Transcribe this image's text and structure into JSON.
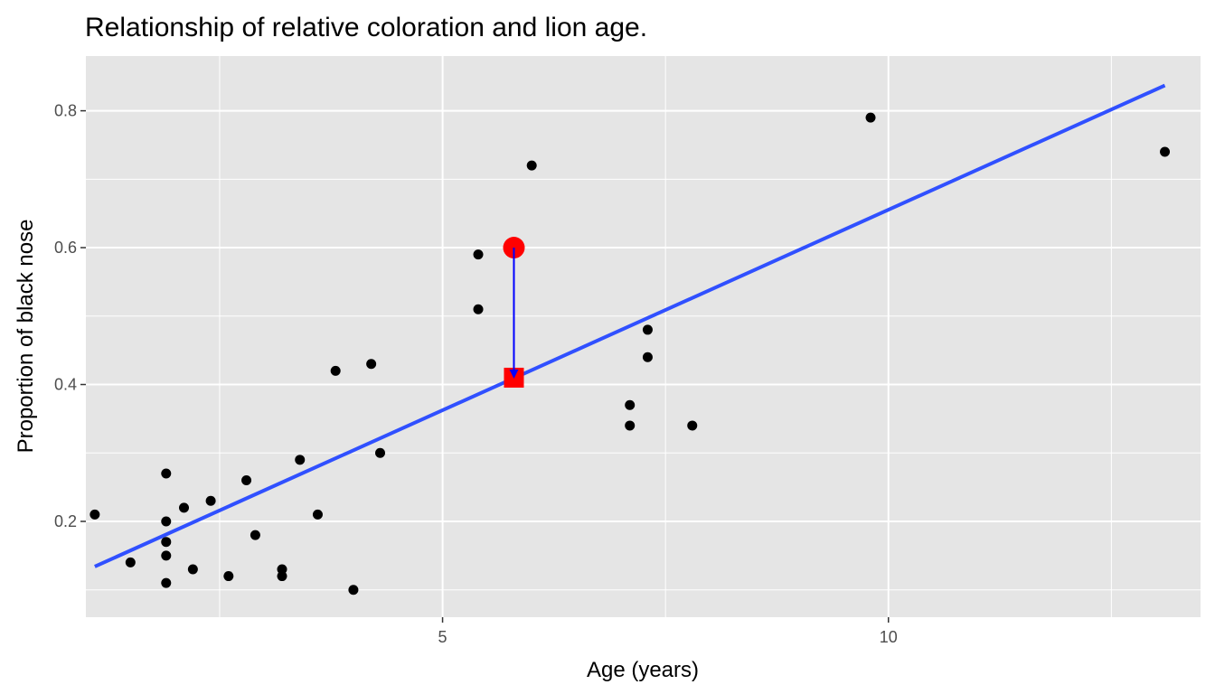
{
  "chart_data": {
    "type": "scatter",
    "title": "Relationship of relative coloration and lion age.",
    "xlabel": "Age (years)",
    "ylabel": "Proportion of black nose",
    "xlim": [
      1.0,
      13.5
    ],
    "ylim": [
      0.06,
      0.88
    ],
    "x_ticks": [
      5,
      10
    ],
    "x_tick_labels": [
      "5",
      "10"
    ],
    "y_ticks": [
      0.2,
      0.4,
      0.6,
      0.8
    ],
    "y_tick_labels": [
      "0.2",
      "0.4",
      "0.6",
      "0.8"
    ],
    "grid": true,
    "points": [
      {
        "x": 1.1,
        "y": 0.21
      },
      {
        "x": 1.5,
        "y": 0.14
      },
      {
        "x": 1.9,
        "y": 0.27
      },
      {
        "x": 1.9,
        "y": 0.2
      },
      {
        "x": 1.9,
        "y": 0.17
      },
      {
        "x": 1.9,
        "y": 0.15
      },
      {
        "x": 1.9,
        "y": 0.11
      },
      {
        "x": 2.1,
        "y": 0.22
      },
      {
        "x": 2.2,
        "y": 0.13
      },
      {
        "x": 2.4,
        "y": 0.23
      },
      {
        "x": 2.6,
        "y": 0.12
      },
      {
        "x": 2.8,
        "y": 0.26
      },
      {
        "x": 2.9,
        "y": 0.18
      },
      {
        "x": 3.2,
        "y": 0.13
      },
      {
        "x": 3.2,
        "y": 0.12
      },
      {
        "x": 3.4,
        "y": 0.29
      },
      {
        "x": 3.6,
        "y": 0.21
      },
      {
        "x": 3.8,
        "y": 0.42
      },
      {
        "x": 4.0,
        "y": 0.1
      },
      {
        "x": 4.2,
        "y": 0.43
      },
      {
        "x": 4.3,
        "y": 0.3
      },
      {
        "x": 5.4,
        "y": 0.59
      },
      {
        "x": 5.4,
        "y": 0.51
      },
      {
        "x": 6.0,
        "y": 0.72
      },
      {
        "x": 7.1,
        "y": 0.37
      },
      {
        "x": 7.1,
        "y": 0.34
      },
      {
        "x": 7.3,
        "y": 0.48
      },
      {
        "x": 7.3,
        "y": 0.44
      },
      {
        "x": 7.8,
        "y": 0.34
      },
      {
        "x": 9.8,
        "y": 0.79
      },
      {
        "x": 13.1,
        "y": 0.74
      }
    ],
    "fit_line": {
      "x": [
        1.1,
        13.1
      ],
      "y": [
        0.134,
        0.837
      ],
      "color": "#3050ff"
    },
    "highlight": {
      "observed": {
        "x": 5.8,
        "y": 0.6,
        "color": "#ff0000"
      },
      "fitted": {
        "x": 5.8,
        "y": 0.41,
        "color": "#ff0000"
      },
      "arrow_color": "#0000ff"
    },
    "colors": {
      "panel": "#e5e5e5",
      "grid": "#ffffff",
      "points": "#000000",
      "tick": "#333333"
    }
  }
}
